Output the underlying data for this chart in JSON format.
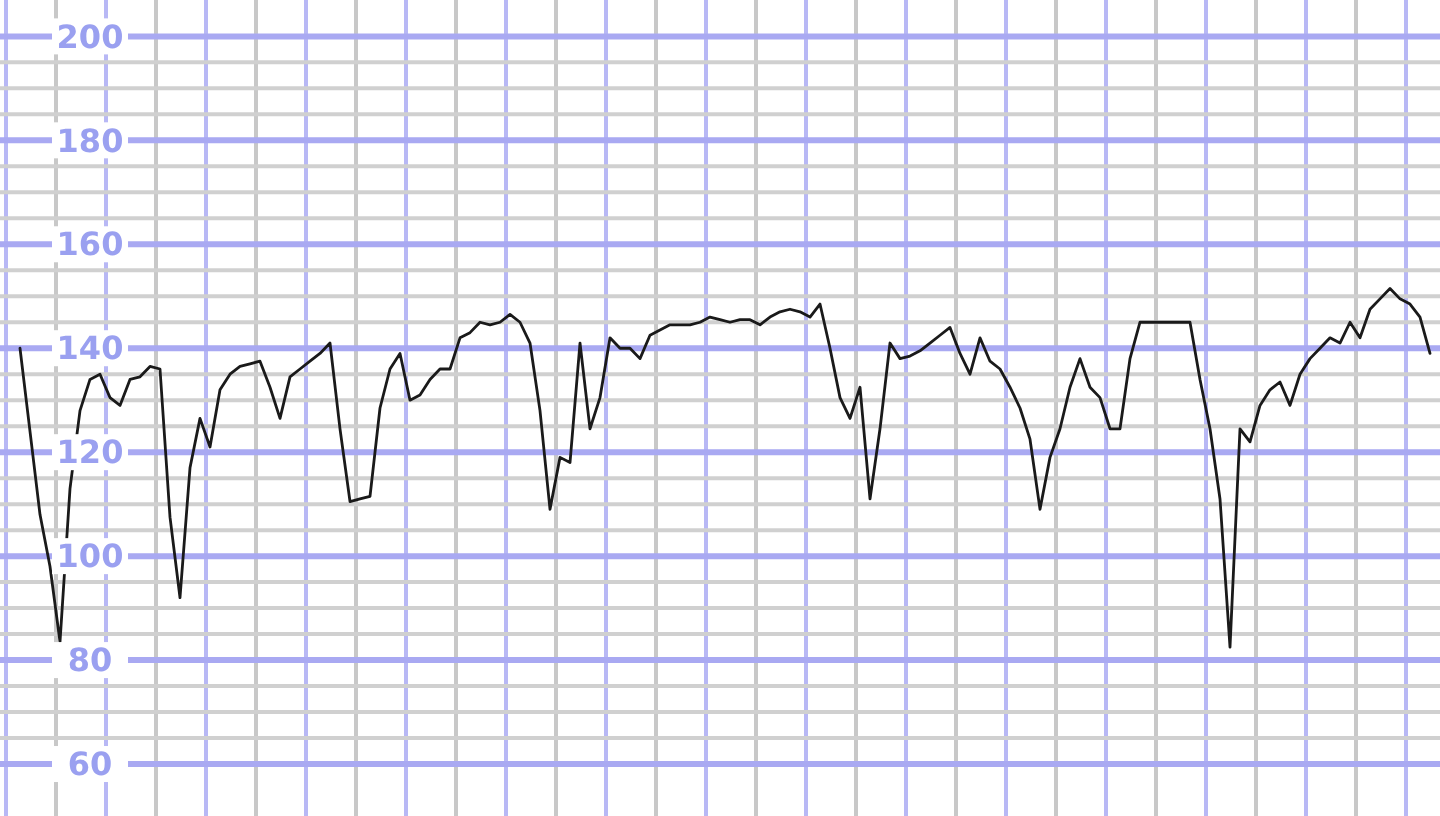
{
  "chart_data": {
    "type": "line",
    "grid": true,
    "tick_labels": "y",
    "ylim": [
      50,
      207
    ],
    "yticks": [
      60,
      80,
      100,
      120,
      140,
      160,
      180,
      200
    ],
    "categories": [
      null,
      null,
      null,
      null,
      null,
      null,
      null,
      null,
      null,
      null,
      null,
      null,
      null,
      null,
      null,
      null,
      null,
      null,
      null,
      null,
      null,
      null,
      null,
      null,
      null,
      null,
      null,
      null,
      null,
      null,
      null,
      null,
      null,
      null,
      null,
      null,
      null,
      null,
      null,
      null,
      null,
      null,
      null,
      null,
      null,
      null,
      null,
      null,
      null,
      null,
      null,
      null,
      null,
      null,
      null,
      null,
      null,
      null,
      null,
      null,
      null,
      null,
      null,
      null,
      null,
      null,
      null,
      null,
      null,
      null,
      null,
      null,
      null,
      null,
      null,
      null,
      null,
      null,
      null,
      null,
      null,
      null,
      null,
      null,
      null,
      null,
      null,
      null,
      null,
      null,
      null,
      null,
      null,
      null,
      null,
      null,
      null,
      null,
      null,
      null,
      null,
      null,
      null,
      null,
      null,
      null,
      null,
      null,
      null,
      null,
      null,
      null,
      null,
      null,
      null,
      null,
      null,
      null,
      null,
      null,
      null,
      null,
      null,
      null,
      null,
      null,
      null,
      null,
      null,
      null,
      null,
      null,
      null,
      null,
      null,
      null,
      null,
      null,
      null,
      null,
      null,
      null
    ],
    "series": [
      {
        "color": "#1a1a1a",
        "values": [
          140,
          124,
          108,
          98,
          83.5,
          113,
          128,
          134,
          135,
          130.5,
          129,
          134,
          134.5,
          136.5,
          136,
          107.5,
          92,
          117,
          126.5,
          121,
          132,
          135,
          136.5,
          137,
          137.5,
          132.5,
          126.5,
          134.5,
          136,
          137.5,
          139,
          141,
          124.5,
          110.5,
          111,
          111.5,
          128.5,
          136,
          139,
          130,
          131,
          134,
          136,
          136,
          142,
          143,
          145,
          144.5,
          145,
          146.5,
          145,
          141,
          128,
          109,
          119,
          118,
          141,
          124.5,
          130.5,
          142,
          140,
          140,
          138,
          142.5,
          143.5,
          144.5,
          144.5,
          144.5,
          145,
          146,
          145.5,
          145,
          145.5,
          145.5,
          144.5,
          146,
          147,
          147.5,
          147,
          146,
          148.5,
          140,
          130.5,
          126.5,
          132.5,
          111,
          124.5,
          141,
          138,
          138.5,
          139.5,
          141,
          142.5,
          144,
          139,
          135,
          142,
          137.5,
          136,
          132.5,
          128.5,
          122.5,
          109,
          119,
          124.5,
          132.5,
          138,
          132.5,
          130.5,
          124.5,
          124.5,
          138,
          145,
          145,
          145,
          145,
          145,
          145,
          134,
          124.5,
          111,
          82.5,
          124.5,
          122,
          129,
          132,
          133.5,
          129,
          135,
          138,
          140,
          142,
          141,
          145,
          142,
          147.5,
          149.5,
          151.5,
          149.5,
          148.5,
          146,
          139
        ]
      }
    ]
  }
}
